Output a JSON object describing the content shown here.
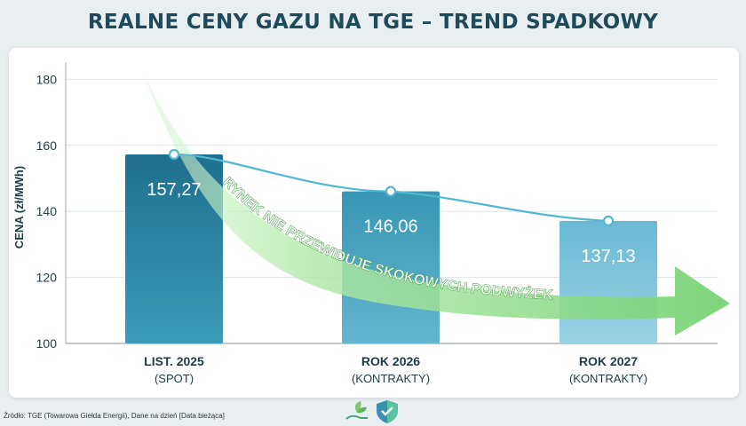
{
  "chart_data": {
    "type": "bar",
    "title": "REALNE CENY GAZU NA TGE – TREND SPADKOWY",
    "ylabel": "CENA (zł/MWh)",
    "ylim": [
      100,
      185
    ],
    "yticks": [
      100,
      120,
      140,
      160,
      180
    ],
    "grid": true,
    "categories": [
      {
        "line1": "LIST. 2025",
        "line2": "(SPOT)"
      },
      {
        "line1": "ROK 2026",
        "line2": "(KONTRAKTY)"
      },
      {
        "line1": "ROK 2027",
        "line2": "(KONTRAKTY)"
      }
    ],
    "values": [
      157.27,
      146.06,
      137.13
    ],
    "value_labels": [
      "157,27",
      "146,06",
      "137,13"
    ],
    "trend_line": [
      157.27,
      146.06,
      137.13
    ],
    "annotation": "RYNEK NIE PRZEWIDUJE SKOKOWYCH PODWYŻEK",
    "colors": {
      "bars": [
        "#2f88a6",
        "#4aa6c2",
        "#7cc4dc"
      ],
      "line": "#53b8cf",
      "arrow": "#8fdc8c",
      "axis_text": "#1d3c47"
    }
  },
  "footer": {
    "source": "Źródło: TGE (Towarowa Giełda Energii), Dane na dzień [Data bieżąca]",
    "icons": [
      "plant-hand-icon",
      "shield-check-icon"
    ]
  }
}
